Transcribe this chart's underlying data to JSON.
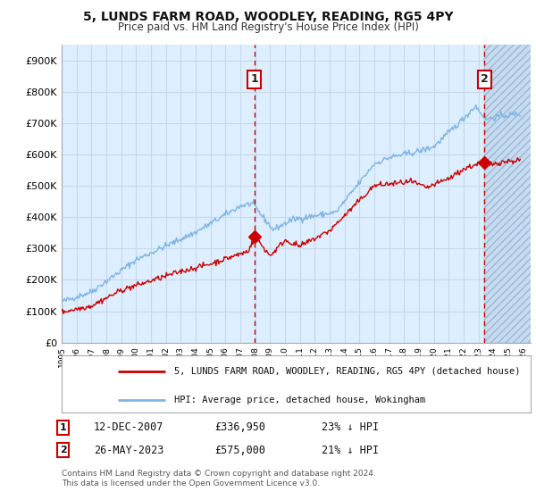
{
  "title": "5, LUNDS FARM ROAD, WOODLEY, READING, RG5 4PY",
  "subtitle": "Price paid vs. HM Land Registry's House Price Index (HPI)",
  "ylabel_ticks": [
    "£0",
    "£100K",
    "£200K",
    "£300K",
    "£400K",
    "£500K",
    "£600K",
    "£700K",
    "£800K",
    "£900K"
  ],
  "ytick_values": [
    0,
    100000,
    200000,
    300000,
    400000,
    500000,
    600000,
    700000,
    800000,
    900000
  ],
  "ylim": [
    0,
    950000
  ],
  "xlim_start": 1995.0,
  "xlim_end": 2026.5,
  "hpi_color": "#7eb4e3",
  "price_color": "#cc0000",
  "marker1_date": 2007.95,
  "marker1_price": 336950,
  "marker1_label": "1",
  "marker2_date": 2023.4,
  "marker2_price": 575000,
  "marker2_label": "2",
  "vline1_x": 2007.95,
  "vline2_x": 2023.4,
  "legend_line1": "5, LUNDS FARM ROAD, WOODLEY, READING, RG5 4PY (detached house)",
  "legend_line2": "HPI: Average price, detached house, Wokingham",
  "note1_label": "1",
  "note1_date": "12-DEC-2007",
  "note1_price": "£336,950",
  "note1_hpi": "23% ↓ HPI",
  "note2_label": "2",
  "note2_date": "26-MAY-2023",
  "note2_price": "£575,000",
  "note2_hpi": "21% ↓ HPI",
  "footnote": "Contains HM Land Registry data © Crown copyright and database right 2024.\nThis data is licensed under the Open Government Licence v3.0.",
  "background_plot": "#ddeeff",
  "background_fig": "#ffffff",
  "grid_color": "#c8d8ec",
  "hatch_color": "#b8cfe6"
}
